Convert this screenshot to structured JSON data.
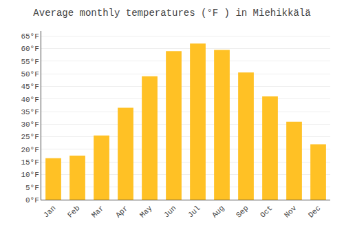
{
  "chart_data": {
    "type": "bar",
    "title": "Average monthly temperatures (°F ) in Miehikkälä",
    "categories": [
      "Jan",
      "Feb",
      "Mar",
      "Apr",
      "May",
      "Jun",
      "Jul",
      "Aug",
      "Sep",
      "Oct",
      "Nov",
      "Dec"
    ],
    "values": [
      16.5,
      17.5,
      25.5,
      36.5,
      49.0,
      59.0,
      62.0,
      59.5,
      50.5,
      41.0,
      31.0,
      22.0
    ],
    "color": "#FFC125",
    "ylim": [
      0,
      67
    ],
    "yticks": [
      {
        "value": 0,
        "label": "0°F"
      },
      {
        "value": 5,
        "label": "5°F"
      },
      {
        "value": 10,
        "label": "10°F"
      },
      {
        "value": 15,
        "label": "15°F"
      },
      {
        "value": 20,
        "label": "20°F"
      },
      {
        "value": 25,
        "label": "25°F"
      },
      {
        "value": 30,
        "label": "30°F"
      },
      {
        "value": 35,
        "label": "35°F"
      },
      {
        "value": 40,
        "label": "40°F"
      },
      {
        "value": 45,
        "label": "45°F"
      },
      {
        "value": 50,
        "label": "50°F"
      },
      {
        "value": 55,
        "label": "55°F"
      },
      {
        "value": 60,
        "label": "60°F"
      },
      {
        "value": 65,
        "label": "65°F"
      }
    ],
    "grid": true
  }
}
